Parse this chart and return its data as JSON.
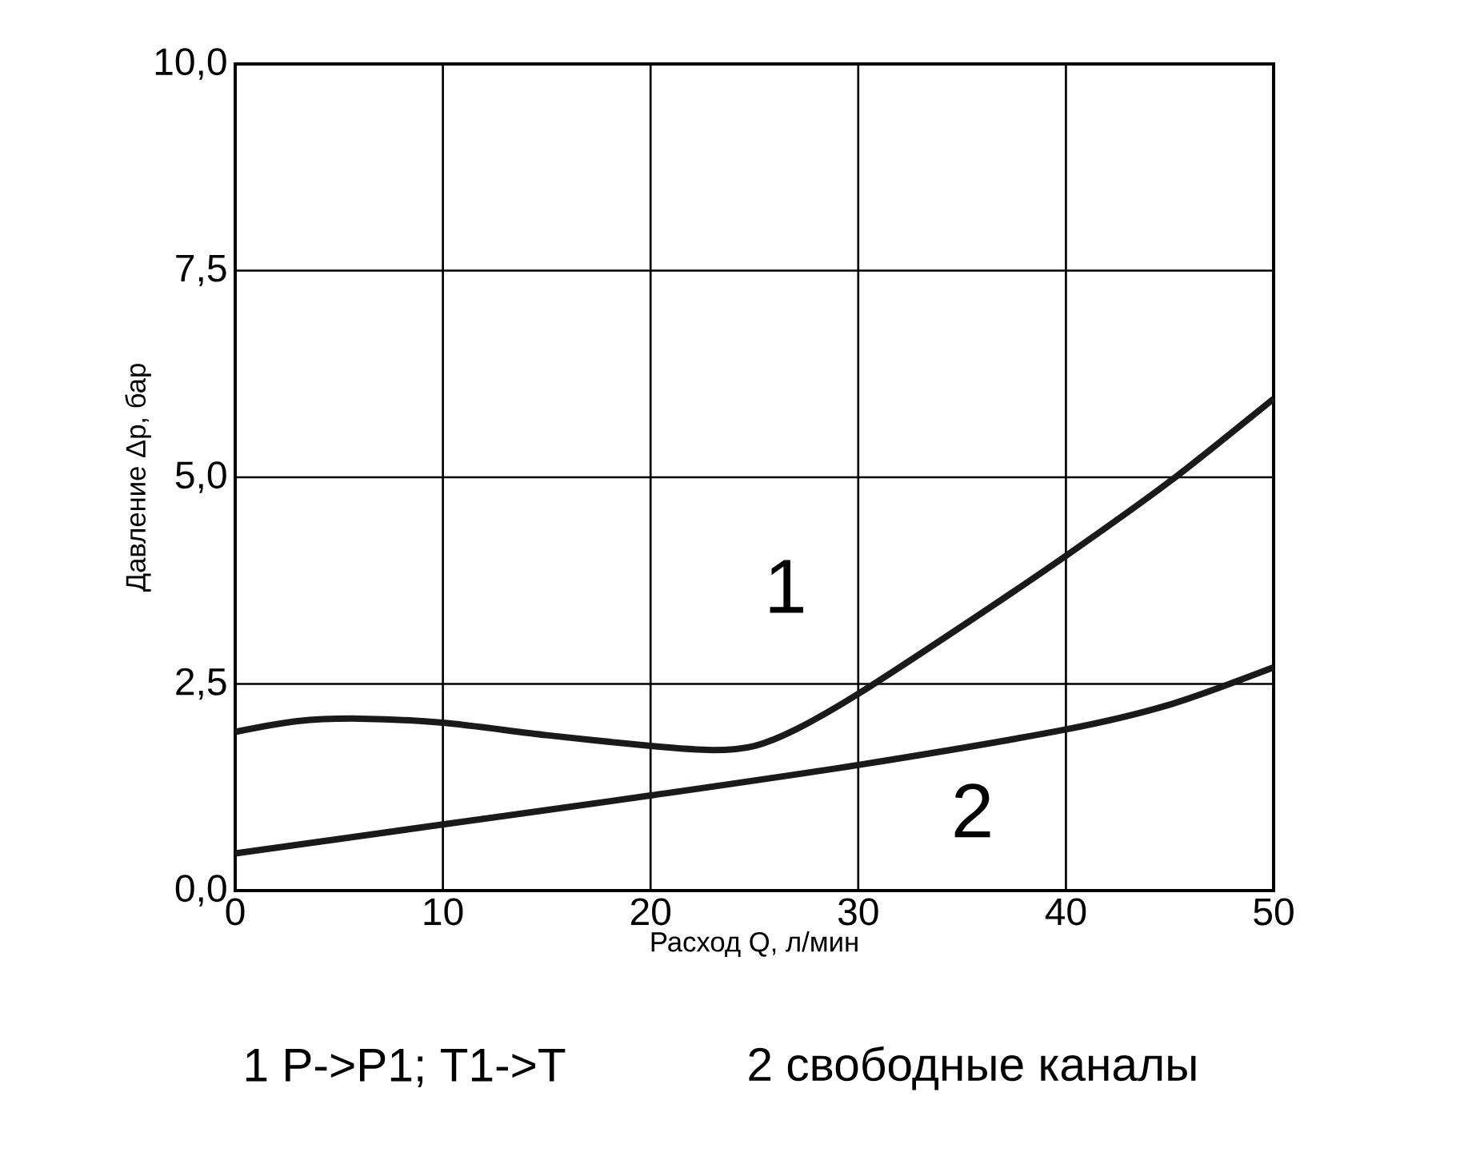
{
  "chart_data": {
    "type": "line",
    "xlabel": "Расход Q, л/мин",
    "ylabel": "Давление Δp, бар",
    "xlim": [
      0,
      50
    ],
    "ylim": [
      0,
      10
    ],
    "xticks": [
      0,
      10,
      20,
      30,
      40,
      50
    ],
    "yticks": [
      {
        "value": 0,
        "label": "0,0"
      },
      {
        "value": 2.5,
        "label": "2,5"
      },
      {
        "value": 5,
        "label": "5,0"
      },
      {
        "value": 7.5,
        "label": "7,5"
      },
      {
        "value": 10,
        "label": "10,0"
      }
    ],
    "grid": true,
    "marker": "none",
    "line_style": "solid",
    "series": [
      {
        "name": "1",
        "color": "#1a1a1a",
        "x": [
          0,
          3,
          6,
          10,
          15,
          20,
          23,
          25,
          27,
          30,
          35,
          40,
          45,
          50
        ],
        "values": [
          1.92,
          2.05,
          2.08,
          2.03,
          1.88,
          1.75,
          1.7,
          1.75,
          1.95,
          2.38,
          3.2,
          4.05,
          4.95,
          5.95
        ]
      },
      {
        "name": "2",
        "color": "#1a1a1a",
        "x": [
          0,
          10,
          20,
          30,
          40,
          45,
          50
        ],
        "values": [
          0.45,
          0.8,
          1.15,
          1.52,
          1.95,
          2.25,
          2.7
        ]
      }
    ],
    "annotations": [
      "1  P->P1; T1->T",
      "2 свободные каналы"
    ]
  }
}
